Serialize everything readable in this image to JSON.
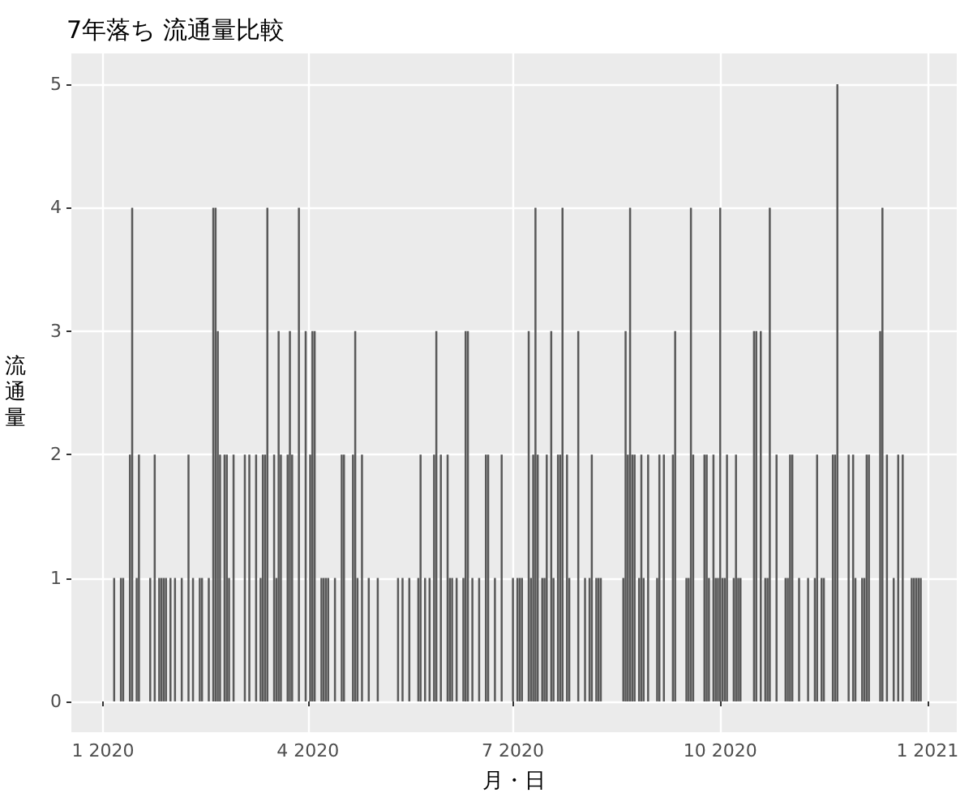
{
  "chart_data": {
    "type": "bar",
    "title": "7年落ち 流通量比較",
    "xlabel": "月・日",
    "ylabel": "流通量",
    "x": [
      "2020-01-06",
      "2020-01-09",
      "2020-01-10",
      "2020-01-13",
      "2020-01-14",
      "2020-01-16",
      "2020-01-17",
      "2020-01-22",
      "2020-01-24",
      "2020-01-26",
      "2020-01-27",
      "2020-01-28",
      "2020-01-29",
      "2020-01-31",
      "2020-02-02",
      "2020-02-05",
      "2020-02-08",
      "2020-02-10",
      "2020-02-13",
      "2020-02-14",
      "2020-02-17",
      "2020-02-19",
      "2020-02-20",
      "2020-02-21",
      "2020-02-22",
      "2020-02-24",
      "2020-02-25",
      "2020-02-26",
      "2020-02-28",
      "2020-03-04",
      "2020-03-06",
      "2020-03-09",
      "2020-03-11",
      "2020-03-12",
      "2020-03-13",
      "2020-03-14",
      "2020-03-17",
      "2020-03-18",
      "2020-03-19",
      "2020-03-20",
      "2020-03-23",
      "2020-03-24",
      "2020-03-25",
      "2020-03-28",
      "2020-03-31",
      "2020-04-02",
      "2020-04-03",
      "2020-04-04",
      "2020-04-07",
      "2020-04-08",
      "2020-04-09",
      "2020-04-10",
      "2020-04-13",
      "2020-04-16",
      "2020-04-17",
      "2020-04-21",
      "2020-04-22",
      "2020-04-23",
      "2020-04-25",
      "2020-04-28",
      "2020-05-02",
      "2020-05-11",
      "2020-05-13",
      "2020-05-16",
      "2020-05-20",
      "2020-05-21",
      "2020-05-23",
      "2020-05-25",
      "2020-05-27",
      "2020-05-28",
      "2020-05-30",
      "2020-06-02",
      "2020-06-03",
      "2020-06-04",
      "2020-06-06",
      "2020-06-09",
      "2020-06-10",
      "2020-06-11",
      "2020-06-13",
      "2020-06-16",
      "2020-06-19",
      "2020-06-20",
      "2020-06-23",
      "2020-06-26",
      "2020-07-01",
      "2020-07-03",
      "2020-07-04",
      "2020-07-05",
      "2020-07-08",
      "2020-07-09",
      "2020-07-10",
      "2020-07-11",
      "2020-07-12",
      "2020-07-14",
      "2020-07-15",
      "2020-07-16",
      "2020-07-18",
      "2020-07-19",
      "2020-07-21",
      "2020-07-22",
      "2020-07-23",
      "2020-07-25",
      "2020-07-26",
      "2020-07-30",
      "2020-08-02",
      "2020-08-04",
      "2020-08-05",
      "2020-08-07",
      "2020-08-08",
      "2020-08-09",
      "2020-08-19",
      "2020-08-20",
      "2020-08-21",
      "2020-08-22",
      "2020-08-23",
      "2020-08-24",
      "2020-08-26",
      "2020-08-27",
      "2020-08-28",
      "2020-08-30",
      "2020-09-03",
      "2020-09-04",
      "2020-09-06",
      "2020-09-10",
      "2020-09-11",
      "2020-09-16",
      "2020-09-17",
      "2020-09-18",
      "2020-09-19",
      "2020-09-24",
      "2020-09-25",
      "2020-09-26",
      "2020-09-28",
      "2020-09-29",
      "2020-09-30",
      "2020-10-01",
      "2020-10-02",
      "2020-10-03",
      "2020-10-04",
      "2020-10-07",
      "2020-10-08",
      "2020-10-09",
      "2020-10-10",
      "2020-10-16",
      "2020-10-17",
      "2020-10-19",
      "2020-10-21",
      "2020-10-22",
      "2020-10-23",
      "2020-10-26",
      "2020-10-30",
      "2020-10-31",
      "2020-11-01",
      "2020-11-02",
      "2020-11-05",
      "2020-11-09",
      "2020-11-12",
      "2020-11-13",
      "2020-11-15",
      "2020-11-16",
      "2020-11-20",
      "2020-11-21",
      "2020-11-22",
      "2020-11-27",
      "2020-11-29",
      "2020-11-30",
      "2020-12-03",
      "2020-12-04",
      "2020-12-05",
      "2020-12-06",
      "2020-12-11",
      "2020-12-12",
      "2020-12-14",
      "2020-12-17",
      "2020-12-19",
      "2020-12-21",
      "2020-12-25",
      "2020-12-26",
      "2020-12-27",
      "2020-12-28",
      "2020-12-29"
    ],
    "values": [
      1,
      1,
      1,
      2,
      4,
      1,
      2,
      1,
      2,
      1,
      1,
      1,
      1,
      1,
      1,
      1,
      2,
      1,
      1,
      1,
      1,
      4,
      4,
      3,
      2,
      2,
      2,
      1,
      2,
      2,
      2,
      2,
      1,
      2,
      2,
      4,
      2,
      1,
      3,
      2,
      2,
      3,
      2,
      4,
      3,
      2,
      3,
      3,
      1,
      1,
      1,
      1,
      1,
      2,
      2,
      2,
      3,
      1,
      2,
      1,
      1,
      1,
      1,
      1,
      1,
      2,
      1,
      1,
      2,
      3,
      2,
      2,
      1,
      1,
      1,
      1,
      3,
      3,
      1,
      1,
      2,
      2,
      1,
      2,
      1,
      1,
      1,
      1,
      3,
      1,
      2,
      4,
      2,
      1,
      1,
      2,
      3,
      1,
      2,
      2,
      4,
      2,
      1,
      3,
      1,
      1,
      2,
      1,
      1,
      1,
      1,
      3,
      2,
      4,
      2,
      2,
      1,
      2,
      1,
      2,
      1,
      2,
      2,
      2,
      3,
      1,
      1,
      4,
      2,
      2,
      2,
      1,
      2,
      1,
      1,
      4,
      1,
      1,
      2,
      1,
      2,
      1,
      1,
      3,
      3,
      3,
      1,
      1,
      4,
      2,
      1,
      1,
      2,
      2,
      1,
      1,
      1,
      2,
      1,
      1,
      2,
      2,
      5,
      2,
      2,
      1,
      1,
      1,
      2,
      2,
      3,
      4,
      2,
      1,
      2,
      2,
      1,
      1,
      1,
      1,
      1
    ],
    "color": "#595959",
    "xlim": [
      "2019-12-18",
      "2021-01-14"
    ],
    "xticks": [
      {
        "value": "2020-01-01",
        "label": "1 2020"
      },
      {
        "value": "2020-04-01",
        "label": "4 2020"
      },
      {
        "value": "2020-07-01",
        "label": "7 2020"
      },
      {
        "value": "2020-10-01",
        "label": "10 2020"
      },
      {
        "value": "2021-01-01",
        "label": "1 2021"
      }
    ],
    "ylim": [
      -0.25,
      5.25
    ],
    "yticks": [
      0,
      1,
      2,
      3,
      4,
      5
    ],
    "grid": true
  }
}
